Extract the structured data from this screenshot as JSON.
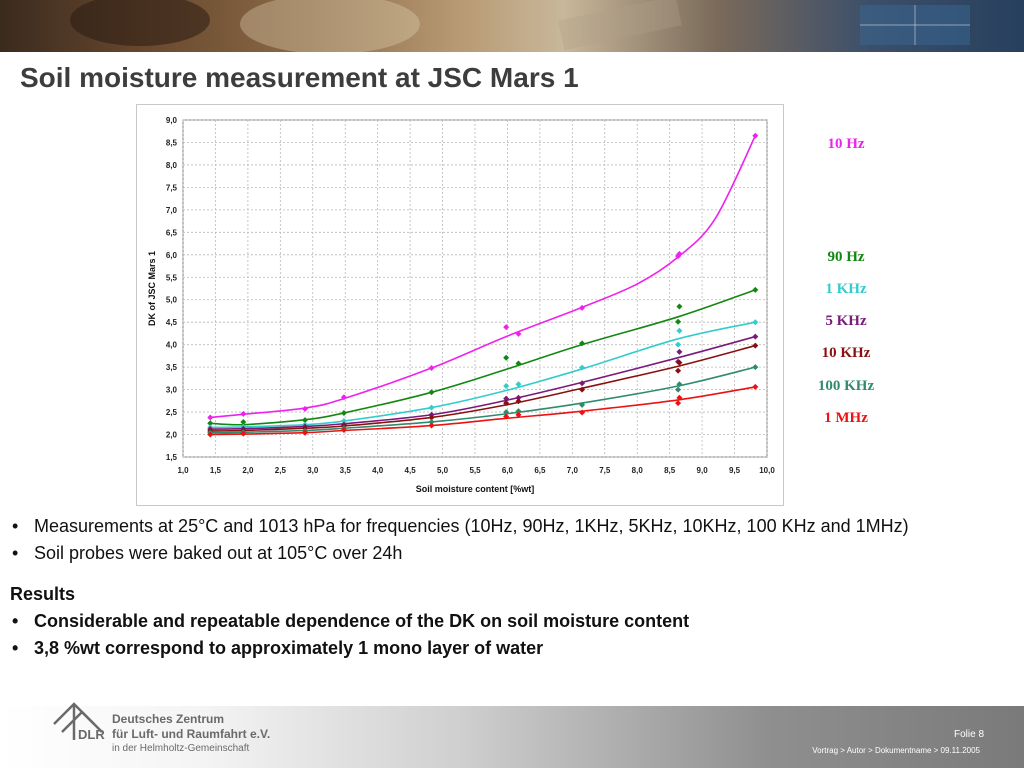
{
  "slide": {
    "title": "Soil moisture measurement at JSC Mars 1"
  },
  "chart_data": {
    "type": "line",
    "title": "",
    "xlabel": "Soil  moisture content [%wt]",
    "ylabel": "DK of JSC Mars 1",
    "xlim": [
      1.0,
      10.0
    ],
    "ylim": [
      1.5,
      9.0
    ],
    "xticks": [
      "1,0",
      "1,5",
      "2,0",
      "2,5",
      "3,0",
      "3,5",
      "4,0",
      "4,5",
      "5,0",
      "5,5",
      "6,0",
      "6,5",
      "7,0",
      "7,5",
      "8,0",
      "8,5",
      "9,0",
      "9,5",
      "10,0"
    ],
    "yticks": [
      "1,5",
      "2,0",
      "2,5",
      "3,0",
      "3,5",
      "4,0",
      "4,5",
      "5,0",
      "5,5",
      "6,0",
      "6,5",
      "7,0",
      "7,5",
      "8,0",
      "8,5",
      "9,0"
    ],
    "grid": true,
    "legend_placement": "right, outside",
    "series": [
      {
        "name": "10 Hz",
        "color": "#ee22ee",
        "points": [
          [
            1.42,
            2.38
          ],
          [
            1.93,
            2.46
          ],
          [
            2.88,
            2.57
          ],
          [
            3.48,
            2.83
          ],
          [
            4.83,
            3.48
          ],
          [
            5.98,
            4.39
          ],
          [
            6.17,
            4.24
          ],
          [
            7.15,
            4.82
          ],
          [
            8.63,
            5.97
          ],
          [
            8.65,
            6.02
          ],
          [
            9.82,
            8.65
          ]
        ],
        "curve": [
          [
            1.42,
            2.38
          ],
          [
            1.93,
            2.45
          ],
          [
            2.88,
            2.59
          ],
          [
            3.48,
            2.8
          ],
          [
            4.83,
            3.48
          ],
          [
            5.98,
            4.18
          ],
          [
            7.15,
            4.83
          ],
          [
            8.0,
            5.35
          ],
          [
            8.63,
            5.95
          ],
          [
            9.2,
            6.8
          ],
          [
            9.82,
            8.65
          ]
        ]
      },
      {
        "name": "90 Hz",
        "color": "#118811",
        "points": [
          [
            1.42,
            2.25
          ],
          [
            1.93,
            2.28
          ],
          [
            2.88,
            2.32
          ],
          [
            3.48,
            2.48
          ],
          [
            4.83,
            2.94
          ],
          [
            5.98,
            3.71
          ],
          [
            6.17,
            3.58
          ],
          [
            7.15,
            4.03
          ],
          [
            8.63,
            4.51
          ],
          [
            8.65,
            4.85
          ],
          [
            9.82,
            5.22
          ]
        ],
        "curve": [
          [
            1.42,
            2.25
          ],
          [
            1.93,
            2.22
          ],
          [
            2.88,
            2.33
          ],
          [
            3.48,
            2.48
          ],
          [
            4.83,
            2.94
          ],
          [
            5.98,
            3.45
          ],
          [
            7.15,
            4.0
          ],
          [
            8.63,
            4.62
          ],
          [
            9.82,
            5.22
          ]
        ]
      },
      {
        "name": "1 KHz",
        "color": "#33cccc",
        "points": [
          [
            1.42,
            2.16
          ],
          [
            1.93,
            2.17
          ],
          [
            2.88,
            2.22
          ],
          [
            3.48,
            2.3
          ],
          [
            4.83,
            2.6
          ],
          [
            5.98,
            3.08
          ],
          [
            6.17,
            3.12
          ],
          [
            7.15,
            3.49
          ],
          [
            8.63,
            4.0
          ],
          [
            8.65,
            4.31
          ],
          [
            9.82,
            4.5
          ]
        ],
        "curve": [
          [
            1.42,
            2.16
          ],
          [
            1.93,
            2.17
          ],
          [
            2.88,
            2.22
          ],
          [
            3.48,
            2.3
          ],
          [
            4.83,
            2.6
          ],
          [
            5.98,
            2.98
          ],
          [
            7.15,
            3.46
          ],
          [
            8.63,
            4.13
          ],
          [
            9.82,
            4.5
          ]
        ]
      },
      {
        "name": "5 KHz",
        "color": "#7a1a7a",
        "points": [
          [
            1.42,
            2.12
          ],
          [
            1.93,
            2.13
          ],
          [
            2.88,
            2.18
          ],
          [
            3.48,
            2.22
          ],
          [
            4.83,
            2.44
          ],
          [
            5.98,
            2.8
          ],
          [
            6.17,
            2.82
          ],
          [
            7.15,
            3.14
          ],
          [
            8.63,
            3.62
          ],
          [
            8.65,
            3.84
          ],
          [
            9.82,
            4.18
          ]
        ],
        "curve": [
          [
            1.42,
            2.12
          ],
          [
            1.93,
            2.13
          ],
          [
            2.88,
            2.18
          ],
          [
            3.48,
            2.24
          ],
          [
            4.83,
            2.44
          ],
          [
            5.98,
            2.76
          ],
          [
            7.15,
            3.16
          ],
          [
            8.63,
            3.71
          ],
          [
            9.82,
            4.18
          ]
        ]
      },
      {
        "name": "10 KHz",
        "color": "#8a1010",
        "points": [
          [
            1.42,
            2.08
          ],
          [
            1.93,
            2.09
          ],
          [
            2.88,
            2.14
          ],
          [
            3.48,
            2.19
          ],
          [
            4.83,
            2.38
          ],
          [
            5.98,
            2.7
          ],
          [
            6.17,
            2.74
          ],
          [
            7.15,
            3.0
          ],
          [
            8.63,
            3.42
          ],
          [
            8.65,
            3.6
          ],
          [
            9.82,
            3.98
          ]
        ],
        "curve": [
          [
            1.42,
            2.08
          ],
          [
            1.93,
            2.09
          ],
          [
            2.88,
            2.14
          ],
          [
            3.48,
            2.19
          ],
          [
            4.83,
            2.38
          ],
          [
            5.98,
            2.66
          ],
          [
            7.15,
            3.03
          ],
          [
            8.63,
            3.52
          ],
          [
            9.82,
            3.98
          ]
        ]
      },
      {
        "name": "100 KHz",
        "color": "#2e8b6e",
        "points": [
          [
            1.42,
            2.04
          ],
          [
            1.93,
            2.05
          ],
          [
            2.88,
            2.08
          ],
          [
            3.48,
            2.14
          ],
          [
            4.83,
            2.28
          ],
          [
            5.98,
            2.5
          ],
          [
            6.17,
            2.52
          ],
          [
            7.15,
            2.66
          ],
          [
            8.63,
            3.0
          ],
          [
            8.65,
            3.12
          ],
          [
            9.82,
            3.5
          ]
        ],
        "curve": [
          [
            1.42,
            2.04
          ],
          [
            1.93,
            2.05
          ],
          [
            2.88,
            2.09
          ],
          [
            3.48,
            2.14
          ],
          [
            4.83,
            2.28
          ],
          [
            5.98,
            2.46
          ],
          [
            7.15,
            2.7
          ],
          [
            8.63,
            3.08
          ],
          [
            9.82,
            3.5
          ]
        ]
      },
      {
        "name": "1 MHz",
        "color": "#ee1111",
        "points": [
          [
            1.42,
            2.0
          ],
          [
            1.93,
            2.02
          ],
          [
            2.88,
            2.04
          ],
          [
            3.48,
            2.1
          ],
          [
            4.83,
            2.2
          ],
          [
            5.98,
            2.4
          ],
          [
            6.17,
            2.44
          ],
          [
            7.15,
            2.49
          ],
          [
            8.63,
            2.7
          ],
          [
            8.65,
            2.82
          ],
          [
            9.82,
            3.06
          ]
        ],
        "curve": [
          [
            1.42,
            2.0
          ],
          [
            1.93,
            2.01
          ],
          [
            2.88,
            2.04
          ],
          [
            3.48,
            2.09
          ],
          [
            4.83,
            2.2
          ],
          [
            5.98,
            2.36
          ],
          [
            7.15,
            2.52
          ],
          [
            8.63,
            2.77
          ],
          [
            9.82,
            3.06
          ]
        ]
      }
    ]
  },
  "bullets": [
    "Measurements at 25°C and 1013 hPa for frequencies (10Hz, 90Hz, 1KHz, 5KHz, 10KHz, 100 KHz and 1MHz)",
    "Soil probes were baked out at 105°C over 24h"
  ],
  "results": {
    "heading": "Results",
    "items": [
      "Considerable and  repeatable dependence of the DK on soil moisture content",
      "3,8 %wt correspond to approximately 1 mono layer of water"
    ]
  },
  "footer": {
    "logo_text": "DLR",
    "org_line1": "Deutsches Zentrum",
    "org_line2": "für Luft- und Raumfahrt e.V.",
    "org_line3": "in der Helmholtz-Gemeinschaft",
    "folie": "Folie 8",
    "vortrag": "Vortrag > Autor > Dokumentname > 09.11.2005"
  }
}
